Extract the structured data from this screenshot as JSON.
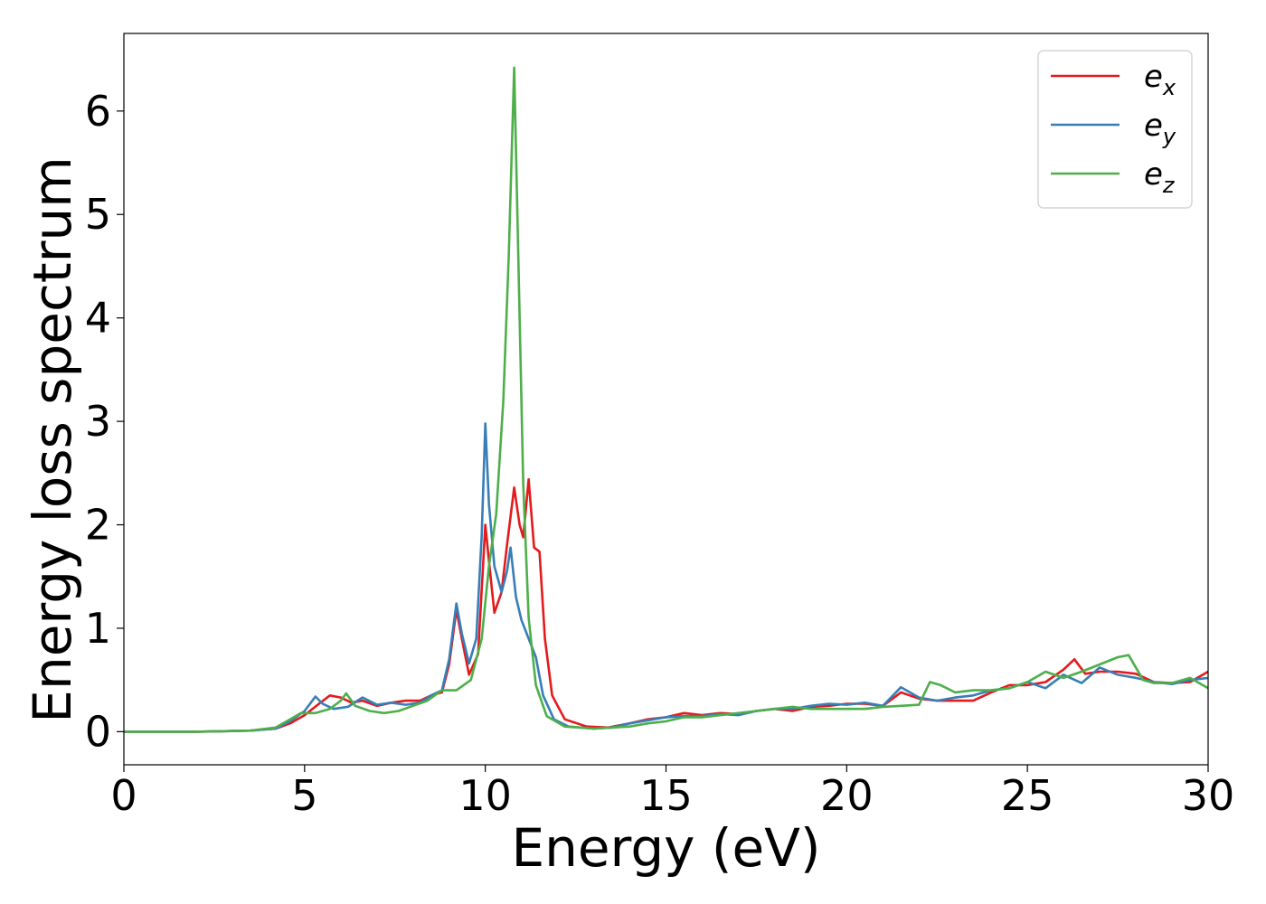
{
  "chart_data": {
    "type": "line",
    "xlabel": "Energy (eV)",
    "ylabel": "Energy loss spectrum",
    "xlim": [
      0,
      30
    ],
    "ylim": [
      -0.32,
      6.75
    ],
    "xticks": [
      0,
      5,
      10,
      15,
      20,
      25,
      30
    ],
    "yticks": [
      0,
      1,
      2,
      3,
      4,
      5,
      6
    ],
    "grid": false,
    "legend_position": "top-right",
    "series": [
      {
        "name": "e_x",
        "label_base": "e",
        "label_sub": "x",
        "color": "#e41a1c",
        "points": [
          [
            0,
            0.0
          ],
          [
            2,
            0.0
          ],
          [
            3.5,
            0.01
          ],
          [
            4.2,
            0.03
          ],
          [
            4.6,
            0.08
          ],
          [
            5.0,
            0.16
          ],
          [
            5.4,
            0.27
          ],
          [
            5.7,
            0.35
          ],
          [
            6.0,
            0.33
          ],
          [
            6.3,
            0.28
          ],
          [
            6.6,
            0.3
          ],
          [
            7.0,
            0.25
          ],
          [
            7.4,
            0.28
          ],
          [
            7.8,
            0.3
          ],
          [
            8.2,
            0.3
          ],
          [
            8.5,
            0.35
          ],
          [
            8.8,
            0.38
          ],
          [
            9.0,
            0.65
          ],
          [
            9.2,
            1.18
          ],
          [
            9.35,
            0.9
          ],
          [
            9.55,
            0.55
          ],
          [
            9.8,
            0.75
          ],
          [
            10.0,
            2.0
          ],
          [
            10.1,
            1.65
          ],
          [
            10.25,
            1.15
          ],
          [
            10.45,
            1.35
          ],
          [
            10.6,
            1.8
          ],
          [
            10.8,
            2.36
          ],
          [
            10.95,
            2.0
          ],
          [
            11.05,
            1.88
          ],
          [
            11.2,
            2.44
          ],
          [
            11.35,
            1.78
          ],
          [
            11.5,
            1.74
          ],
          [
            11.65,
            0.9
          ],
          [
            11.85,
            0.35
          ],
          [
            12.2,
            0.12
          ],
          [
            12.8,
            0.05
          ],
          [
            13.4,
            0.04
          ],
          [
            14.0,
            0.08
          ],
          [
            14.5,
            0.12
          ],
          [
            15.0,
            0.14
          ],
          [
            15.5,
            0.18
          ],
          [
            16.0,
            0.16
          ],
          [
            16.5,
            0.18
          ],
          [
            17.0,
            0.17
          ],
          [
            17.5,
            0.2
          ],
          [
            18.0,
            0.22
          ],
          [
            18.5,
            0.2
          ],
          [
            19.0,
            0.24
          ],
          [
            19.5,
            0.25
          ],
          [
            20.0,
            0.27
          ],
          [
            20.5,
            0.27
          ],
          [
            21.0,
            0.25
          ],
          [
            21.5,
            0.38
          ],
          [
            22.0,
            0.32
          ],
          [
            22.5,
            0.3
          ],
          [
            23.0,
            0.3
          ],
          [
            23.5,
            0.3
          ],
          [
            24.0,
            0.38
          ],
          [
            24.5,
            0.45
          ],
          [
            25.0,
            0.45
          ],
          [
            25.5,
            0.48
          ],
          [
            26.0,
            0.6
          ],
          [
            26.3,
            0.7
          ],
          [
            26.6,
            0.56
          ],
          [
            27.0,
            0.58
          ],
          [
            27.5,
            0.58
          ],
          [
            28.0,
            0.56
          ],
          [
            28.5,
            0.48
          ],
          [
            29.0,
            0.47
          ],
          [
            29.5,
            0.48
          ],
          [
            30.0,
            0.58
          ]
        ]
      },
      {
        "name": "e_y",
        "label_base": "e",
        "label_sub": "y",
        "color": "#377eb8",
        "points": [
          [
            0,
            0.0
          ],
          [
            2,
            0.0
          ],
          [
            3.5,
            0.01
          ],
          [
            4.2,
            0.03
          ],
          [
            4.6,
            0.1
          ],
          [
            5.0,
            0.2
          ],
          [
            5.3,
            0.34
          ],
          [
            5.5,
            0.27
          ],
          [
            5.8,
            0.22
          ],
          [
            6.2,
            0.24
          ],
          [
            6.6,
            0.33
          ],
          [
            7.0,
            0.26
          ],
          [
            7.4,
            0.28
          ],
          [
            7.8,
            0.26
          ],
          [
            8.2,
            0.28
          ],
          [
            8.5,
            0.35
          ],
          [
            8.8,
            0.4
          ],
          [
            9.0,
            0.7
          ],
          [
            9.2,
            1.24
          ],
          [
            9.35,
            0.95
          ],
          [
            9.55,
            0.66
          ],
          [
            9.75,
            0.9
          ],
          [
            9.9,
            1.9
          ],
          [
            10.0,
            2.98
          ],
          [
            10.1,
            2.2
          ],
          [
            10.25,
            1.6
          ],
          [
            10.45,
            1.35
          ],
          [
            10.6,
            1.55
          ],
          [
            10.7,
            1.78
          ],
          [
            10.85,
            1.3
          ],
          [
            11.0,
            1.08
          ],
          [
            11.2,
            0.9
          ],
          [
            11.4,
            0.72
          ],
          [
            11.6,
            0.35
          ],
          [
            11.9,
            0.12
          ],
          [
            12.3,
            0.05
          ],
          [
            13.0,
            0.03
          ],
          [
            13.5,
            0.04
          ],
          [
            14.0,
            0.08
          ],
          [
            14.5,
            0.11
          ],
          [
            15.0,
            0.14
          ],
          [
            15.5,
            0.15
          ],
          [
            16.0,
            0.15
          ],
          [
            16.5,
            0.17
          ],
          [
            17.0,
            0.16
          ],
          [
            17.5,
            0.2
          ],
          [
            18.0,
            0.22
          ],
          [
            18.5,
            0.22
          ],
          [
            19.0,
            0.25
          ],
          [
            19.5,
            0.27
          ],
          [
            20.0,
            0.26
          ],
          [
            20.5,
            0.28
          ],
          [
            21.0,
            0.25
          ],
          [
            21.5,
            0.43
          ],
          [
            22.0,
            0.33
          ],
          [
            22.5,
            0.3
          ],
          [
            23.0,
            0.33
          ],
          [
            23.5,
            0.35
          ],
          [
            24.0,
            0.4
          ],
          [
            24.5,
            0.42
          ],
          [
            25.0,
            0.48
          ],
          [
            25.5,
            0.42
          ],
          [
            26.0,
            0.55
          ],
          [
            26.5,
            0.47
          ],
          [
            27.0,
            0.62
          ],
          [
            27.5,
            0.55
          ],
          [
            28.0,
            0.52
          ],
          [
            28.5,
            0.48
          ],
          [
            29.0,
            0.46
          ],
          [
            29.5,
            0.5
          ],
          [
            30.0,
            0.52
          ]
        ]
      },
      {
        "name": "e_z",
        "label_base": "e",
        "label_sub": "z",
        "color": "#4daf4a",
        "points": [
          [
            0,
            0.0
          ],
          [
            2,
            0.0
          ],
          [
            3.5,
            0.01
          ],
          [
            4.2,
            0.04
          ],
          [
            4.6,
            0.12
          ],
          [
            4.9,
            0.18
          ],
          [
            5.3,
            0.18
          ],
          [
            5.7,
            0.22
          ],
          [
            6.0,
            0.3
          ],
          [
            6.15,
            0.37
          ],
          [
            6.4,
            0.25
          ],
          [
            6.8,
            0.2
          ],
          [
            7.2,
            0.18
          ],
          [
            7.6,
            0.2
          ],
          [
            8.0,
            0.25
          ],
          [
            8.4,
            0.3
          ],
          [
            8.8,
            0.4
          ],
          [
            9.2,
            0.4
          ],
          [
            9.6,
            0.5
          ],
          [
            9.9,
            0.9
          ],
          [
            10.1,
            1.6
          ],
          [
            10.3,
            2.1
          ],
          [
            10.5,
            3.2
          ],
          [
            10.65,
            4.6
          ],
          [
            10.8,
            6.42
          ],
          [
            10.92,
            4.5
          ],
          [
            11.05,
            2.4
          ],
          [
            11.2,
            1.1
          ],
          [
            11.4,
            0.45
          ],
          [
            11.7,
            0.15
          ],
          [
            12.2,
            0.05
          ],
          [
            13.0,
            0.03
          ],
          [
            13.5,
            0.04
          ],
          [
            14.0,
            0.05
          ],
          [
            14.5,
            0.08
          ],
          [
            15.0,
            0.1
          ],
          [
            15.5,
            0.14
          ],
          [
            16.0,
            0.14
          ],
          [
            16.5,
            0.16
          ],
          [
            17.0,
            0.18
          ],
          [
            17.5,
            0.2
          ],
          [
            18.0,
            0.22
          ],
          [
            18.5,
            0.24
          ],
          [
            19.0,
            0.22
          ],
          [
            19.5,
            0.22
          ],
          [
            20.0,
            0.22
          ],
          [
            20.5,
            0.22
          ],
          [
            21.0,
            0.24
          ],
          [
            21.5,
            0.25
          ],
          [
            22.0,
            0.26
          ],
          [
            22.3,
            0.48
          ],
          [
            22.6,
            0.45
          ],
          [
            23.0,
            0.38
          ],
          [
            23.5,
            0.4
          ],
          [
            24.0,
            0.4
          ],
          [
            24.5,
            0.42
          ],
          [
            25.0,
            0.48
          ],
          [
            25.5,
            0.58
          ],
          [
            26.0,
            0.52
          ],
          [
            26.5,
            0.58
          ],
          [
            27.0,
            0.65
          ],
          [
            27.5,
            0.72
          ],
          [
            27.8,
            0.74
          ],
          [
            28.2,
            0.5
          ],
          [
            28.5,
            0.47
          ],
          [
            29.0,
            0.47
          ],
          [
            29.5,
            0.52
          ],
          [
            30.0,
            0.42
          ]
        ]
      }
    ]
  }
}
